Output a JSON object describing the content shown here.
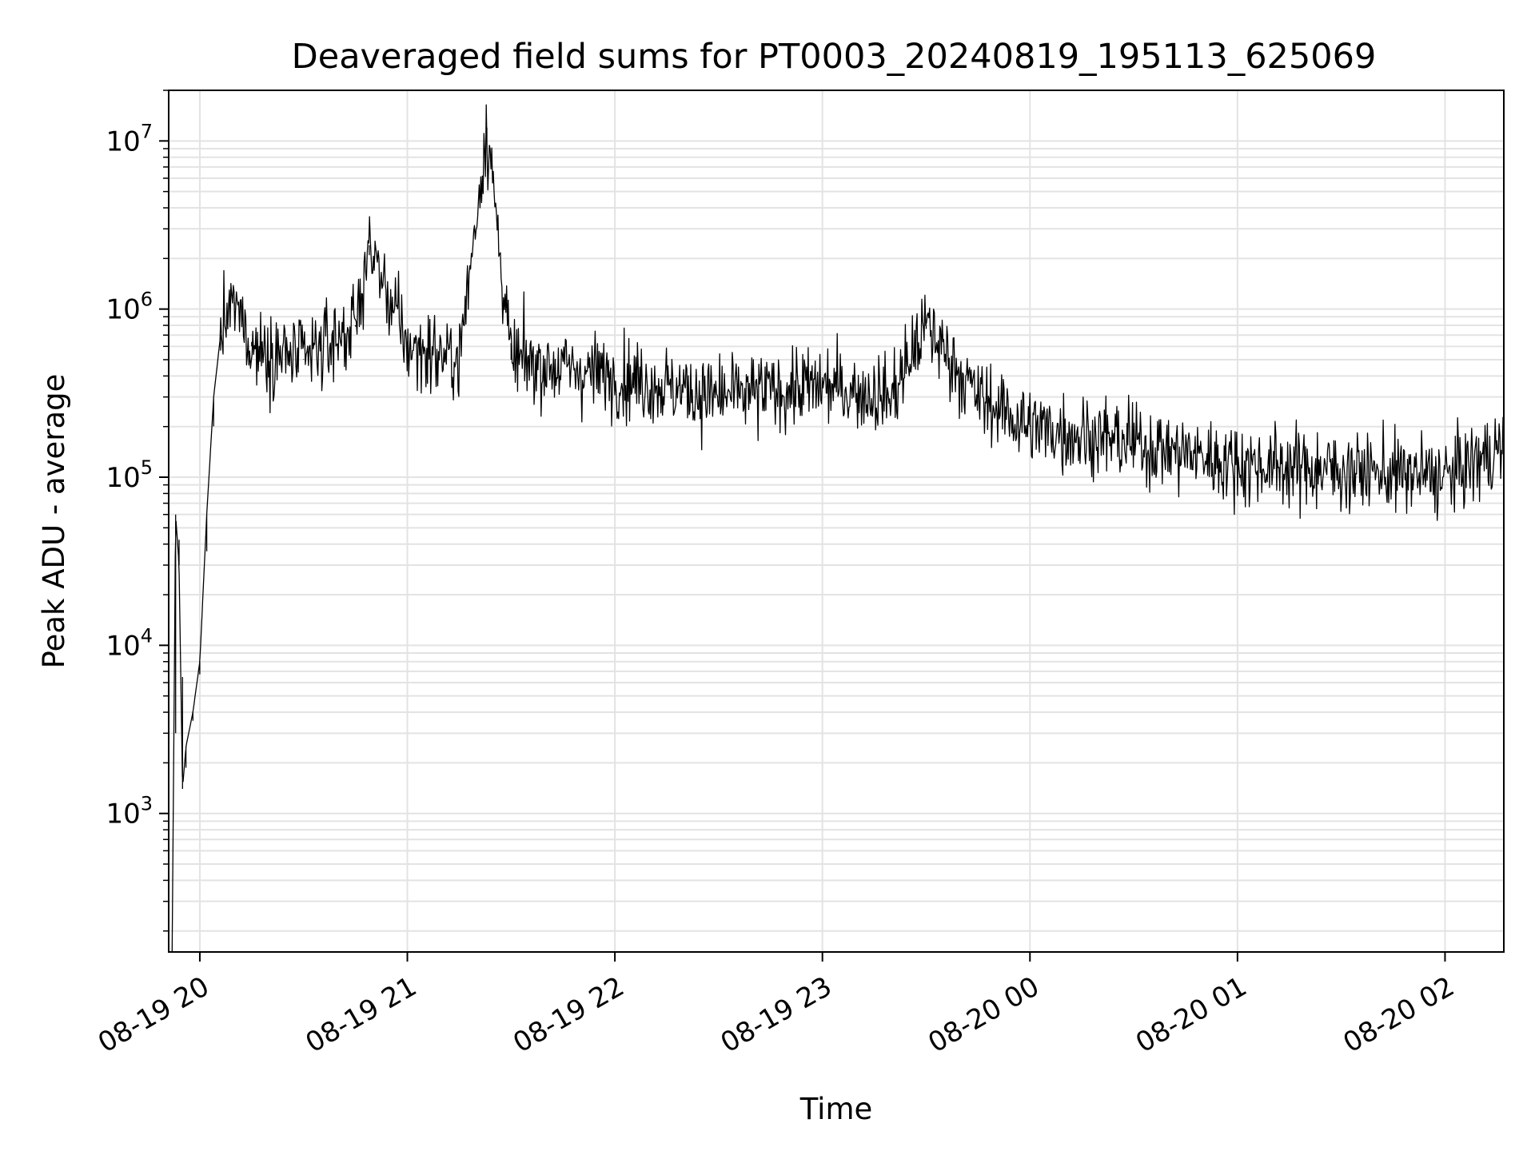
{
  "chart_data": {
    "type": "line",
    "title": "Deaveraged field sums for PT0003_20240819_195113_625069",
    "xlabel": "Time",
    "ylabel": "Peak ADU - average",
    "yscale": "log",
    "xlim": [
      "2024-08-19 19:51",
      "2024-08-20 02:17"
    ],
    "ylim": [
      150,
      20000000
    ],
    "grid": true,
    "line_color": "#000000",
    "x_ticks": [
      {
        "label": "08-19 20",
        "time": "2024-08-19 20:00"
      },
      {
        "label": "08-19 21",
        "time": "2024-08-19 21:00"
      },
      {
        "label": "08-19 22",
        "time": "2024-08-19 22:00"
      },
      {
        "label": "08-19 23",
        "time": "2024-08-19 23:00"
      },
      {
        "label": "08-20 00",
        "time": "2024-08-20 00:00"
      },
      {
        "label": "08-20 01",
        "time": "2024-08-20 01:00"
      },
      {
        "label": "08-20 02",
        "time": "2024-08-20 02:00"
      }
    ],
    "y_ticks": [
      {
        "base": "10",
        "exp": "3",
        "value": 1000
      },
      {
        "base": "10",
        "exp": "4",
        "value": 10000
      },
      {
        "base": "10",
        "exp": "5",
        "value": 100000
      },
      {
        "base": "10",
        "exp": "6",
        "value": 1000000
      },
      {
        "base": "10",
        "exp": "7",
        "value": 10000000
      }
    ],
    "series": [
      {
        "points": [
          {
            "x": "2024-08-19 19:52",
            "y": 150
          },
          {
            "x": "2024-08-19 19:53",
            "y": 60000
          },
          {
            "x": "2024-08-19 19:54",
            "y": 30000
          },
          {
            "x": "2024-08-19 19:55",
            "y": 1400
          },
          {
            "x": "2024-08-19 19:56",
            "y": 2500
          },
          {
            "x": "2024-08-19 19:58",
            "y": 4000
          },
          {
            "x": "2024-08-19 20:00",
            "y": 8000
          },
          {
            "x": "2024-08-19 20:02",
            "y": 60000
          },
          {
            "x": "2024-08-19 20:04",
            "y": 300000
          },
          {
            "x": "2024-08-19 20:06",
            "y": 700000
          },
          {
            "x": "2024-08-19 20:10",
            "y": 1100000
          },
          {
            "x": "2024-08-19 20:15",
            "y": 600000
          },
          {
            "x": "2024-08-19 20:30",
            "y": 500000
          },
          {
            "x": "2024-08-19 20:45",
            "y": 800000
          },
          {
            "x": "2024-08-19 20:49",
            "y": 2400000
          },
          {
            "x": "2024-08-19 21:00",
            "y": 600000
          },
          {
            "x": "2024-08-19 21:15",
            "y": 500000
          },
          {
            "x": "2024-08-19 21:23",
            "y": 12000000
          },
          {
            "x": "2024-08-19 21:30",
            "y": 500000
          },
          {
            "x": "2024-08-19 22:00",
            "y": 400000
          },
          {
            "x": "2024-08-19 22:30",
            "y": 300000
          },
          {
            "x": "2024-08-19 23:00",
            "y": 350000
          },
          {
            "x": "2024-08-19 23:20",
            "y": 300000
          },
          {
            "x": "2024-08-19 23:30",
            "y": 800000
          },
          {
            "x": "2024-08-19 23:45",
            "y": 300000
          },
          {
            "x": "2024-08-20 00:00",
            "y": 200000
          },
          {
            "x": "2024-08-20 00:30",
            "y": 160000
          },
          {
            "x": "2024-08-20 01:00",
            "y": 120000
          },
          {
            "x": "2024-08-20 01:30",
            "y": 110000
          },
          {
            "x": "2024-08-20 02:00",
            "y": 100000
          },
          {
            "x": "2024-08-20 02:17",
            "y": 150000
          }
        ]
      }
    ]
  }
}
